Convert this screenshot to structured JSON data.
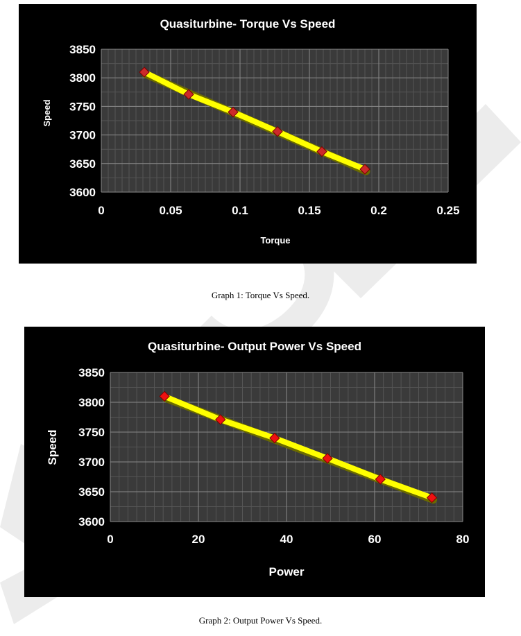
{
  "chart_data": [
    {
      "type": "line",
      "title": "Quasiturbine- Torque Vs Speed",
      "xlabel": "Torque",
      "ylabel": "Speed",
      "xlim": [
        0,
        0.25
      ],
      "ylim": [
        3600,
        3850
      ],
      "x_ticks": [
        "0",
        "0.05",
        "0.1",
        "0.15",
        "0.2",
        "0.25"
      ],
      "y_ticks": [
        "3600",
        "3650",
        "3700",
        "3750",
        "3800",
        "3850"
      ],
      "grid": true,
      "background": "#000000",
      "plot_background": "#3a3a3a",
      "series": [
        {
          "color": "#ffff00",
          "marker_color": "#cc2a2a",
          "x": [
            0.031,
            0.063,
            0.095,
            0.127,
            0.159,
            0.19
          ],
          "y": [
            3810,
            3771,
            3740,
            3706,
            3671,
            3640
          ]
        }
      ]
    },
    {
      "type": "line",
      "title": "Quasiturbine- Output Power Vs Speed",
      "xlabel": "Power",
      "ylabel": "Speed",
      "xlim": [
        0,
        80
      ],
      "ylim": [
        3600,
        3850
      ],
      "x_ticks": [
        "0",
        "20",
        "40",
        "60",
        "80"
      ],
      "y_ticks": [
        "3600",
        "3650",
        "3700",
        "3750",
        "3800",
        "3850"
      ],
      "grid": true,
      "background": "#000000",
      "plot_background": "#3a3a3a",
      "series": [
        {
          "color": "#ffff00",
          "marker_color": "#ee1111",
          "x": [
            12.3,
            25,
            37.3,
            49.3,
            61.3,
            73
          ],
          "y": [
            3810,
            3771,
            3740,
            3706,
            3671,
            3640
          ]
        }
      ]
    }
  ],
  "captions": {
    "graph1": "Graph 1: Torque Vs Speed.",
    "graph2": "Graph 2: Output Power Vs Speed."
  }
}
